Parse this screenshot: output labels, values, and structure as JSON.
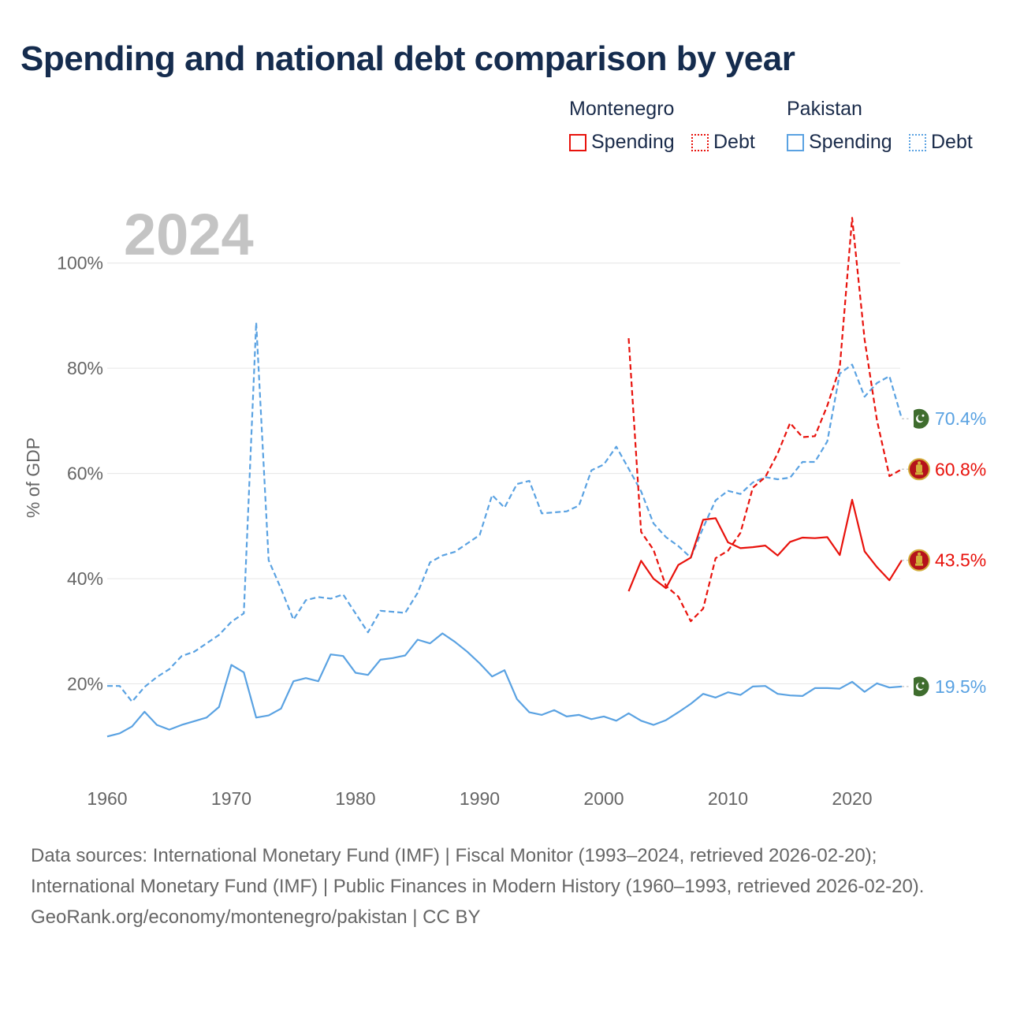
{
  "title": "Spending and national debt comparison by year",
  "legend": {
    "montenegro": {
      "country": "Montenegro",
      "spending": "Spending",
      "debt": "Debt",
      "color": "#e8120c"
    },
    "pakistan": {
      "country": "Pakistan",
      "spending": "Spending",
      "debt": "Debt",
      "color": "#5aa2e2"
    }
  },
  "footer": {
    "sources": "Data sources: International Monetary Fund (IMF) | Fiscal Monitor (1993–2024, retrieved 2026-02-20); International Monetary Fund (IMF) | Public Finances in Modern History (1960–1993, retrieved 2026-02-20).",
    "credit": "GeoRank.org/economy/montenegro/pakistan | CC BY"
  },
  "chart_data": {
    "type": "line",
    "year_label": "2024",
    "ylabel": "% of GDP",
    "xlim": [
      1960,
      2024
    ],
    "ylim": [
      0,
      110
    ],
    "x_ticks": [
      1960,
      1970,
      1980,
      1990,
      2000,
      2010,
      2020
    ],
    "x_tick_labels": [
      "1960",
      "1970",
      "1980",
      "1990",
      "2000",
      "2010",
      "2020"
    ],
    "y_ticks": [
      20,
      40,
      60,
      80,
      100
    ],
    "y_tick_labels": [
      "20%",
      "40%",
      "60%",
      "80%",
      "100%"
    ],
    "series": [
      {
        "name": "Pakistan Spending",
        "country": "Pakistan",
        "metric": "Spending",
        "color": "#5aa2e2",
        "dash": "solid",
        "end_label": "19.5%",
        "flag": "pakistan",
        "x": [
          1960,
          1961,
          1962,
          1963,
          1964,
          1965,
          1966,
          1967,
          1968,
          1969,
          1970,
          1971,
          1972,
          1973,
          1974,
          1975,
          1976,
          1977,
          1978,
          1979,
          1980,
          1981,
          1982,
          1983,
          1984,
          1985,
          1986,
          1987,
          1988,
          1989,
          1990,
          1991,
          1992,
          1993,
          1994,
          1995,
          1996,
          1997,
          1998,
          1999,
          2000,
          2001,
          2002,
          2003,
          2004,
          2005,
          2006,
          2007,
          2008,
          2009,
          2010,
          2011,
          2012,
          2013,
          2014,
          2015,
          2016,
          2017,
          2018,
          2019,
          2020,
          2021,
          2022,
          2023,
          2024
        ],
        "values": [
          10.0,
          10.6,
          11.9,
          14.7,
          12.2,
          11.3,
          12.2,
          12.9,
          13.6,
          15.6,
          23.6,
          22.2,
          13.6,
          14.0,
          15.3,
          20.5,
          21.1,
          20.5,
          25.6,
          25.3,
          22.1,
          21.7,
          24.6,
          24.9,
          25.4,
          28.4,
          27.7,
          29.6,
          28.0,
          26.1,
          23.9,
          21.4,
          22.6,
          17.1,
          14.6,
          14.1,
          15.0,
          13.8,
          14.1,
          13.3,
          13.8,
          13.0,
          14.4,
          13.0,
          12.2,
          13.1,
          14.6,
          16.2,
          18.1,
          17.4,
          18.4,
          17.9,
          19.5,
          19.6,
          18.1,
          17.8,
          17.7,
          19.2,
          19.2,
          19.1,
          20.4,
          18.5,
          20.1,
          19.3,
          19.5
        ]
      },
      {
        "name": "Pakistan Debt",
        "country": "Pakistan",
        "metric": "Debt",
        "color": "#5aa2e2",
        "dash": "dashed",
        "end_label": "70.4%",
        "flag": "pakistan",
        "x": [
          1960,
          1961,
          1962,
          1963,
          1964,
          1965,
          1966,
          1967,
          1968,
          1969,
          1970,
          1971,
          1972,
          1973,
          1974,
          1975,
          1976,
          1977,
          1978,
          1979,
          1980,
          1981,
          1982,
          1983,
          1984,
          1985,
          1986,
          1987,
          1988,
          1989,
          1990,
          1991,
          1992,
          1993,
          1994,
          1995,
          1996,
          1997,
          1998,
          1999,
          2000,
          2001,
          2002,
          2003,
          2004,
          2005,
          2006,
          2007,
          2008,
          2009,
          2010,
          2011,
          2012,
          2013,
          2014,
          2015,
          2016,
          2017,
          2018,
          2019,
          2020,
          2021,
          2022,
          2023,
          2024
        ],
        "values": [
          19.6,
          19.6,
          16.6,
          19.4,
          21.3,
          22.8,
          25.3,
          26.1,
          27.7,
          29.3,
          31.8,
          33.4,
          88.7,
          43.5,
          38.1,
          32.2,
          35.9,
          36.5,
          36.2,
          37.0,
          33.4,
          29.8,
          33.9,
          33.7,
          33.5,
          37.3,
          43.1,
          44.4,
          45.1,
          46.7,
          48.3,
          55.9,
          53.5,
          58.0,
          58.6,
          52.4,
          52.6,
          52.8,
          53.9,
          60.6,
          61.7,
          65.1,
          60.9,
          56.6,
          50.5,
          47.9,
          46.2,
          44.0,
          49.7,
          54.9,
          56.7,
          56.1,
          58.3,
          59.3,
          58.9,
          59.2,
          62.2,
          62.2,
          66.1,
          79.0,
          80.7,
          74.6,
          77.2,
          78.5,
          70.4
        ]
      },
      {
        "name": "Montenegro Spending",
        "country": "Montenegro",
        "metric": "Spending",
        "color": "#e8120c",
        "dash": "solid",
        "end_label": "43.5%",
        "flag": "montenegro",
        "x": [
          2002,
          2003,
          2004,
          2005,
          2006,
          2007,
          2008,
          2009,
          2010,
          2011,
          2012,
          2013,
          2014,
          2015,
          2016,
          2017,
          2018,
          2019,
          2020,
          2021,
          2022,
          2023,
          2024
        ],
        "values": [
          37.6,
          43.4,
          40.0,
          38.2,
          42.6,
          44.0,
          51.2,
          51.5,
          46.9,
          45.8,
          46.0,
          46.3,
          44.4,
          47.0,
          47.8,
          47.7,
          47.9,
          44.5,
          55.0,
          45.2,
          42.2,
          39.7,
          43.5
        ]
      },
      {
        "name": "Montenegro Debt",
        "country": "Montenegro",
        "metric": "Debt",
        "color": "#e8120c",
        "dash": "dashed",
        "end_label": "60.8%",
        "flag": "montenegro",
        "x": [
          2002,
          2003,
          2004,
          2005,
          2006,
          2007,
          2008,
          2009,
          2010,
          2011,
          2012,
          2013,
          2014,
          2015,
          2016,
          2017,
          2018,
          2019,
          2020,
          2021,
          2022,
          2023,
          2024
        ],
        "values": [
          85.7,
          48.9,
          45.5,
          38.6,
          36.6,
          31.9,
          34.3,
          43.9,
          45.3,
          48.7,
          57.3,
          59.3,
          63.8,
          69.6,
          66.9,
          67.1,
          72.9,
          80.1,
          108.6,
          85.5,
          70.1,
          59.5,
          60.8
        ]
      }
    ]
  }
}
